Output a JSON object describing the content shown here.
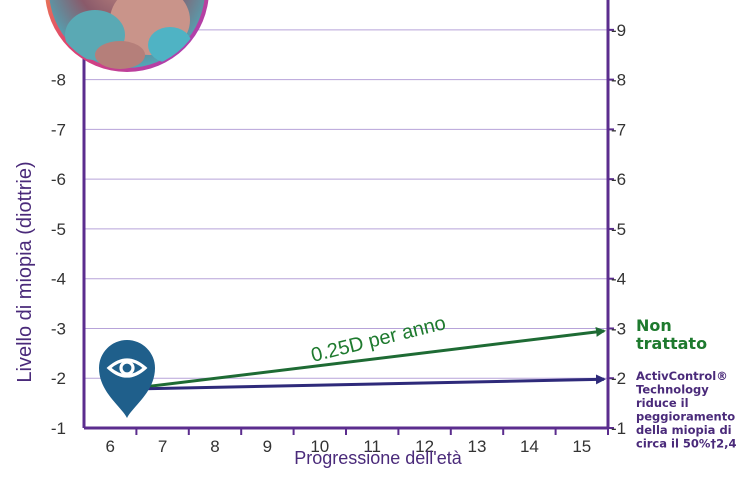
{
  "chart_data": {
    "type": "line",
    "xlabel": "Progressione dell'età",
    "ylabel": "Livello di miopia (diottrie)",
    "x_ticks": [
      6,
      7,
      8,
      9,
      10,
      11,
      12,
      13,
      14,
      15
    ],
    "y_ticks_left": [
      -1,
      -2,
      -3,
      -4,
      -5,
      -6,
      -7,
      -8
    ],
    "y_ticks_right": [
      -1,
      -2,
      -3,
      -4,
      -5,
      -6,
      -7,
      -8,
      -9
    ],
    "xlim": [
      5.5,
      15.5
    ],
    "ylim": [
      -1,
      -9.6
    ],
    "grid": true,
    "series": [
      {
        "name": "Non trattato",
        "color": "#1e6b34",
        "x": [
          6.3,
          15.5
        ],
        "y": [
          -1.78,
          -2.95
        ]
      },
      {
        "name": "ActivControl® Technology",
        "color": "#2e2a7a",
        "x": [
          6.3,
          15.5
        ],
        "y": [
          -1.78,
          -1.98
        ]
      }
    ],
    "annotations": {
      "rate_label": "0.25D per anno",
      "untreated_line1": "Non",
      "untreated_line2": "trattato",
      "treated_lines": [
        "ActivControl®",
        "Technology",
        "riduce il",
        "peggioramento",
        "della miopia di",
        "circa il 50%†2,4"
      ]
    }
  },
  "colors": {
    "axis": "#5b2d8e",
    "grid": "#b7a3d9",
    "untreated": "#1e6b34",
    "treated": "#2e2a7a",
    "pin": "#1f5f8b",
    "label_green": "#1e7a2e",
    "label_purple": "#4a2a7a"
  },
  "icons": {
    "marker": "eye-location-pin-icon",
    "photo": "child-photo-circle"
  }
}
